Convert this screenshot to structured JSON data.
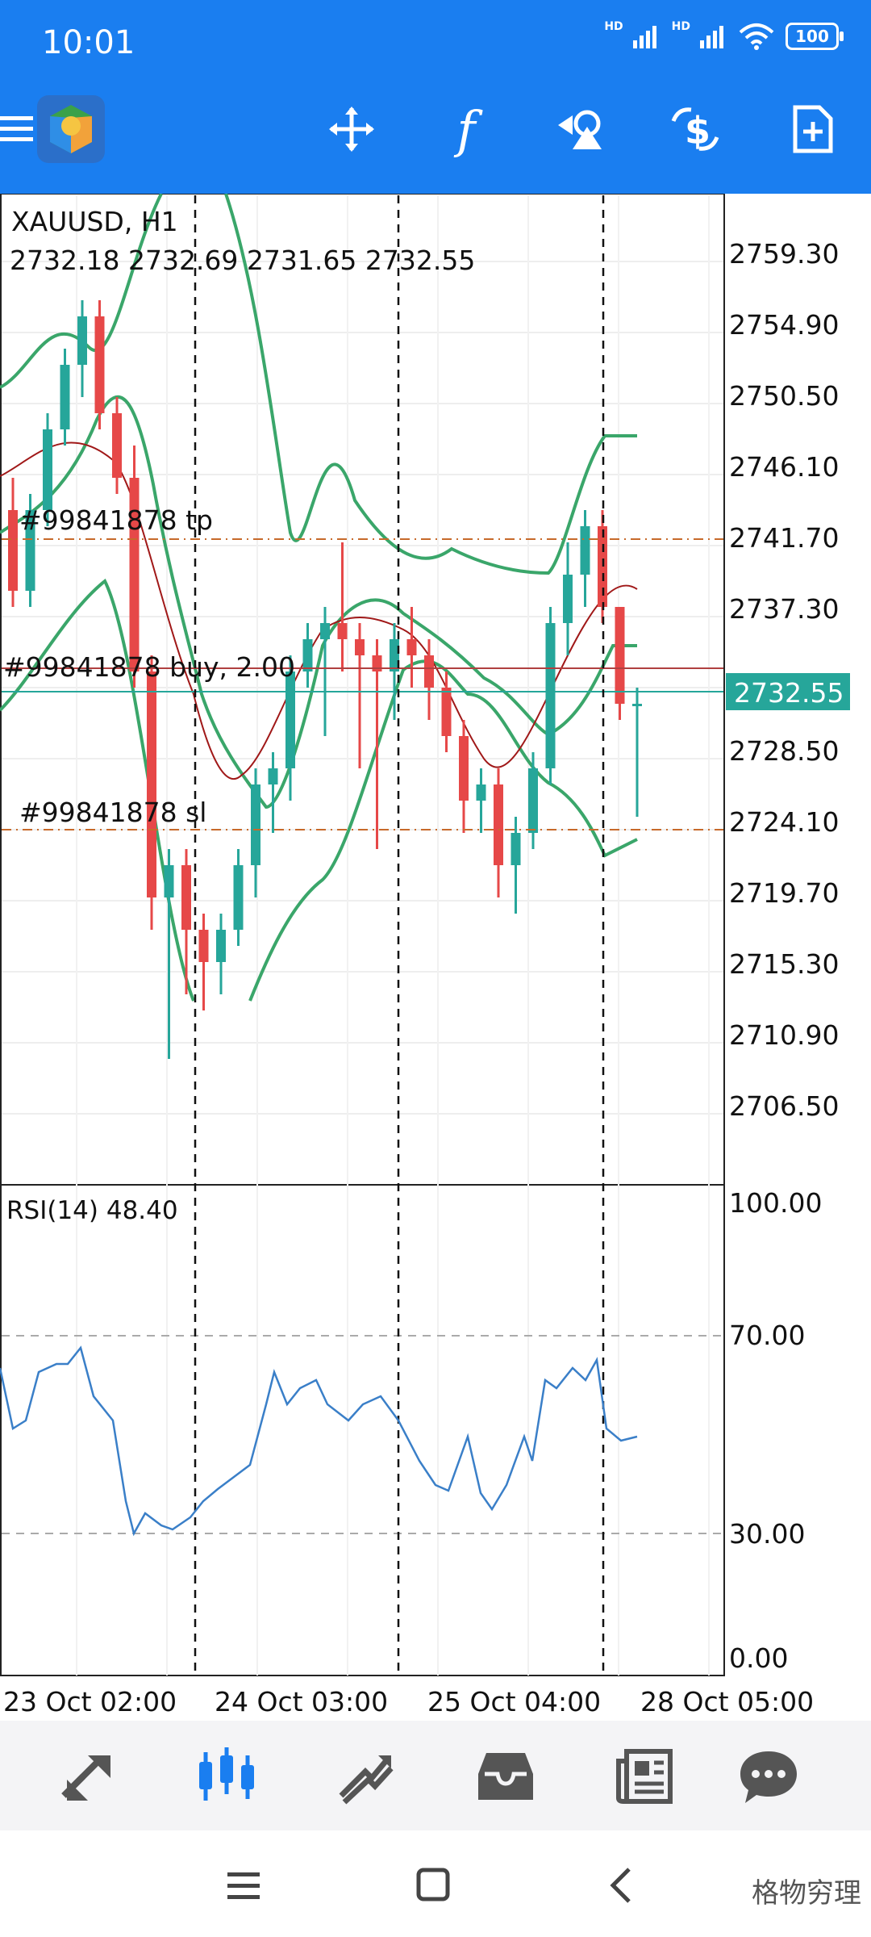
{
  "status_bar": {
    "time": "10:01",
    "hd_1": "HD",
    "hd_2": "HD",
    "battery": "100"
  },
  "toolbar": {
    "icons": [
      "menu-icon",
      "app-logo",
      "crosshair-icon",
      "indicators-icon",
      "objects-icon",
      "trade-icon",
      "new-chart-icon"
    ],
    "function_label": "f"
  },
  "chart": {
    "symbol": "XAUUSD, H1",
    "ohlc": "2732.18 2732.69 2731.65 2732.55",
    "current_price": "2732.55",
    "price_labels": [
      "2759.30",
      "2754.90",
      "2750.50",
      "2746.10",
      "2741.70",
      "2737.30",
      "2728.50",
      "2724.10",
      "2719.70",
      "2715.30",
      "2710.90",
      "2706.50"
    ],
    "tp_label": "#99841878 tp",
    "buy_label": "#99841878 buy, 2.00",
    "sl_label": "#99841878 sl",
    "colors": {
      "bull": "#26a69a",
      "bear": "#e64848",
      "band": "#3aa66a",
      "ma": "#a01818",
      "rsi": "#3a7fc8",
      "level": "#c76a2b"
    }
  },
  "rsi": {
    "label": "RSI(14) 48.40",
    "levels": [
      "100.00",
      "70.00",
      "30.00",
      "0.00"
    ]
  },
  "time_axis": [
    "23 Oct 02:00",
    "24 Oct 03:00",
    "25 Oct 04:00",
    "28 Oct 05:00"
  ],
  "bottom_nav": {
    "items": [
      "quotes-icon",
      "chart-icon",
      "trade-icon",
      "history-icon",
      "news-icon",
      "chat-icon"
    ],
    "active": "chart-icon"
  },
  "system_nav": {
    "watermark": "格物穷理"
  }
}
